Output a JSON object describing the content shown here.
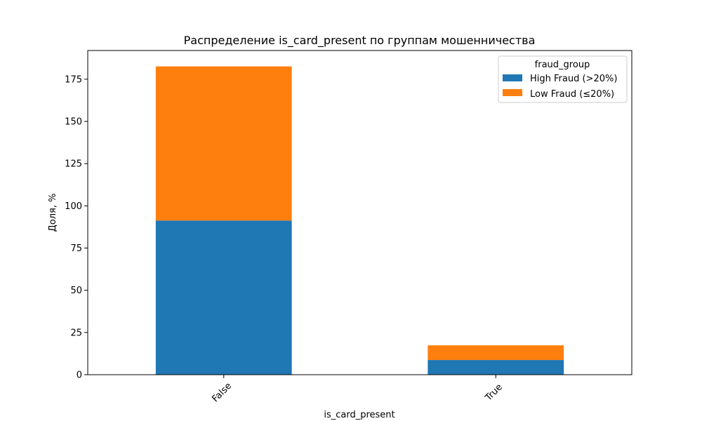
{
  "chart_data": {
    "type": "bar",
    "stacked": true,
    "title": "Распределение is_card_present по группам мошенничества",
    "xlabel": "is_card_present",
    "ylabel": "Доля, %",
    "categories": [
      "False",
      "True"
    ],
    "series": [
      {
        "name": "High Fraud (>20%)",
        "values": [
          91.3,
          8.7
        ],
        "color": "#1f77b4"
      },
      {
        "name": "Low Fraud (≤20%)",
        "values": [
          91.3,
          8.7
        ],
        "color": "#ff7f0e"
      }
    ],
    "ylim": [
      0,
      192
    ],
    "yticks": [
      0,
      25,
      50,
      75,
      100,
      125,
      150,
      175
    ],
    "grid": false,
    "legend": {
      "title": "fraud_group",
      "placement": "top-right"
    }
  }
}
